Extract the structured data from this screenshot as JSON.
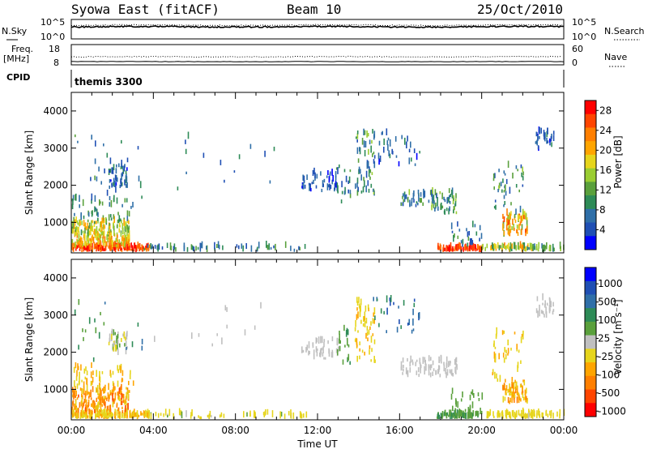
{
  "header": {
    "title": "Syowa East (fitACF)",
    "beam": "Beam 10",
    "date": "25/Oct/2010"
  },
  "noise_panel": {
    "left_label": "N.Sky",
    "left_ticks": [
      "10^5",
      "10^0"
    ],
    "right_ticks": [
      "10^5",
      "10^0"
    ],
    "right_label": "N.Search"
  },
  "freq_panel": {
    "left_label_1": "Freq.",
    "left_label_2": "[MHz]",
    "left_ticks": [
      "18",
      "8"
    ],
    "right_ticks": [
      "60",
      "0"
    ],
    "right_label": "Nave"
  },
  "cpid": {
    "label": "CPID",
    "program": "themis 3300"
  },
  "colors": {
    "frame": "#000000",
    "background": "#ffffff",
    "scale": [
      "#0000ff",
      "#1f4fb4",
      "#2f6fa8",
      "#2e8b57",
      "#5aa03c",
      "#9acd32",
      "#e6d51c",
      "#ffa500",
      "#ff7f00",
      "#ff4500",
      "#ff0000"
    ],
    "ground_scatter": "#c0c0c0"
  },
  "chart_data": [
    {
      "type": "heatmap",
      "panel": "power",
      "ylabel": "Slant Range [km]",
      "yticks": [
        "1000",
        "2000",
        "3000",
        "4000"
      ],
      "ylim": [
        180,
        4500
      ],
      "xlim": [
        0,
        24
      ],
      "colorbar_label": "Power [dB]",
      "colorbar_ticks": [
        "4",
        "8",
        "12",
        "16",
        "20",
        "24",
        "28"
      ],
      "colorbar_range": [
        0,
        30
      ],
      "clusters": [
        {
          "t": [
            0.0,
            3.8
          ],
          "r": [
            200,
            320
          ],
          "v": [
            22,
            30
          ],
          "n": 150
        },
        {
          "t": [
            0.0,
            2.8
          ],
          "r": [
            320,
            600
          ],
          "v": [
            14,
            24
          ],
          "n": 110
        },
        {
          "t": [
            0.0,
            2.8
          ],
          "r": [
            600,
            1000
          ],
          "v": [
            10,
            22
          ],
          "n": 120
        },
        {
          "t": [
            0.0,
            3.0
          ],
          "r": [
            1000,
            1600
          ],
          "v": [
            6,
            14
          ],
          "n": 50
        },
        {
          "t": [
            1.8,
            2.7
          ],
          "r": [
            1900,
            2500
          ],
          "v": [
            2,
            10
          ],
          "n": 45
        },
        {
          "t": [
            0.0,
            3.5
          ],
          "r": [
            1500,
            3300
          ],
          "v": [
            3,
            12
          ],
          "n": 25
        },
        {
          "t": [
            3.5,
            11.5
          ],
          "r": [
            200,
            320
          ],
          "v": [
            4,
            12
          ],
          "n": 60
        },
        {
          "t": [
            4.0,
            10.0
          ],
          "r": [
            1700,
            3300
          ],
          "v": [
            4,
            10
          ],
          "n": 14
        },
        {
          "t": [
            11.2,
            13.0
          ],
          "r": [
            1800,
            2300
          ],
          "v": [
            2,
            8
          ],
          "n": 45
        },
        {
          "t": [
            12.8,
            13.6
          ],
          "r": [
            1500,
            2600
          ],
          "v": [
            4,
            12
          ],
          "n": 20
        },
        {
          "t": [
            13.8,
            14.8
          ],
          "r": [
            1700,
            3400
          ],
          "v": [
            4,
            16
          ],
          "n": 55
        },
        {
          "t": [
            14.5,
            17.0
          ],
          "r": [
            2500,
            3400
          ],
          "v": [
            2,
            9
          ],
          "n": 35
        },
        {
          "t": [
            16.0,
            17.8
          ],
          "r": [
            1400,
            1800
          ],
          "v": [
            4,
            14
          ],
          "n": 45
        },
        {
          "t": [
            17.5,
            18.8
          ],
          "r": [
            1200,
            1800
          ],
          "v": [
            6,
            16
          ],
          "n": 50
        },
        {
          "t": [
            17.8,
            20.0
          ],
          "r": [
            200,
            300
          ],
          "v": [
            22,
            30
          ],
          "n": 80
        },
        {
          "t": [
            18.5,
            20.0
          ],
          "r": [
            300,
            900
          ],
          "v": [
            3,
            12
          ],
          "n": 25
        },
        {
          "t": [
            20.0,
            22.5
          ],
          "r": [
            200,
            320
          ],
          "v": [
            8,
            24
          ],
          "n": 60
        },
        {
          "t": [
            21.0,
            22.2
          ],
          "r": [
            600,
            1200
          ],
          "v": [
            12,
            26
          ],
          "n": 70
        },
        {
          "t": [
            20.5,
            22.0
          ],
          "r": [
            1200,
            2500
          ],
          "v": [
            4,
            14
          ],
          "n": 40
        },
        {
          "t": [
            22.6,
            23.5
          ],
          "r": [
            2900,
            3400
          ],
          "v": [
            2,
            10
          ],
          "n": 30
        },
        {
          "t": [
            22.0,
            24.0
          ],
          "r": [
            200,
            300
          ],
          "v": [
            6,
            16
          ],
          "n": 30
        }
      ]
    },
    {
      "type": "heatmap",
      "panel": "velocity",
      "ylabel": "Slant Range [km]",
      "yticks": [
        "1000",
        "2000",
        "3000",
        "4000"
      ],
      "ylim": [
        180,
        4500
      ],
      "xlim": [
        0,
        24
      ],
      "xlabel": "Time UT",
      "xticks": [
        "00:00",
        "04:00",
        "08:00",
        "12:00",
        "16:00",
        "20:00",
        "00:00"
      ],
      "colorbar_label": "Velocity [m s⁻¹]",
      "colorbar_ticks": [
        "1000",
        "500",
        "100",
        "25",
        "-25",
        "-100",
        "-500",
        "-1000"
      ],
      "colorbar_range": [
        -1500,
        1500
      ],
      "clusters": [
        {
          "t": [
            0.0,
            3.8
          ],
          "r": [
            200,
            320
          ],
          "v": [
            -500,
            -200
          ],
          "n": 150
        },
        {
          "t": [
            0.0,
            2.8
          ],
          "r": [
            320,
            1000
          ],
          "v": [
            -1000,
            -300
          ],
          "n": 200
        },
        {
          "t": [
            0.0,
            3.0
          ],
          "r": [
            1000,
            1600
          ],
          "v": [
            -600,
            -150
          ],
          "n": 50
        },
        {
          "t": [
            1.8,
            2.7
          ],
          "r": [
            1900,
            2500
          ],
          "v": [
            -50,
            60
          ],
          "n": 40
        },
        {
          "t": [
            0.0,
            3.5
          ],
          "r": [
            1500,
            3300
          ],
          "v": [
            200,
            800
          ],
          "n": 20
        },
        {
          "t": [
            3.5,
            11.5
          ],
          "r": [
            200,
            320
          ],
          "v": [
            -300,
            100
          ],
          "n": 60
        },
        {
          "t": [
            4.0,
            10.0
          ],
          "r": [
            1700,
            3300
          ],
          "v": [
            -10,
            20
          ],
          "n": 12
        },
        {
          "t": [
            11.2,
            13.0
          ],
          "r": [
            1800,
            2300
          ],
          "v": [
            -15,
            15
          ],
          "n": 45
        },
        {
          "t": [
            12.8,
            13.6
          ],
          "r": [
            1500,
            2600
          ],
          "v": [
            100,
            500
          ],
          "n": 20
        },
        {
          "t": [
            13.8,
            14.8
          ],
          "r": [
            1700,
            3400
          ],
          "v": [
            -500,
            -100
          ],
          "n": 55
        },
        {
          "t": [
            14.5,
            17.0
          ],
          "r": [
            2500,
            3400
          ],
          "v": [
            500,
            1200
          ],
          "n": 30
        },
        {
          "t": [
            16.0,
            18.8
          ],
          "r": [
            1300,
            1800
          ],
          "v": [
            -20,
            20
          ],
          "n": 80
        },
        {
          "t": [
            17.8,
            20.0
          ],
          "r": [
            200,
            300
          ],
          "v": [
            200,
            500
          ],
          "n": 80
        },
        {
          "t": [
            18.5,
            20.0
          ],
          "r": [
            300,
            900
          ],
          "v": [
            50,
            200
          ],
          "n": 25
        },
        {
          "t": [
            20.0,
            22.5
          ],
          "r": [
            200,
            320
          ],
          "v": [
            -400,
            -100
          ],
          "n": 60
        },
        {
          "t": [
            21.0,
            22.2
          ],
          "r": [
            600,
            1200
          ],
          "v": [
            -800,
            -200
          ],
          "n": 70
        },
        {
          "t": [
            20.5,
            22.0
          ],
          "r": [
            1200,
            2500
          ],
          "v": [
            -600,
            -50
          ],
          "n": 40
        },
        {
          "t": [
            22.6,
            23.5
          ],
          "r": [
            2900,
            3400
          ],
          "v": [
            -20,
            20
          ],
          "n": 30
        },
        {
          "t": [
            22.0,
            24.0
          ],
          "r": [
            200,
            300
          ],
          "v": [
            -300,
            0
          ],
          "n": 30
        }
      ]
    }
  ]
}
